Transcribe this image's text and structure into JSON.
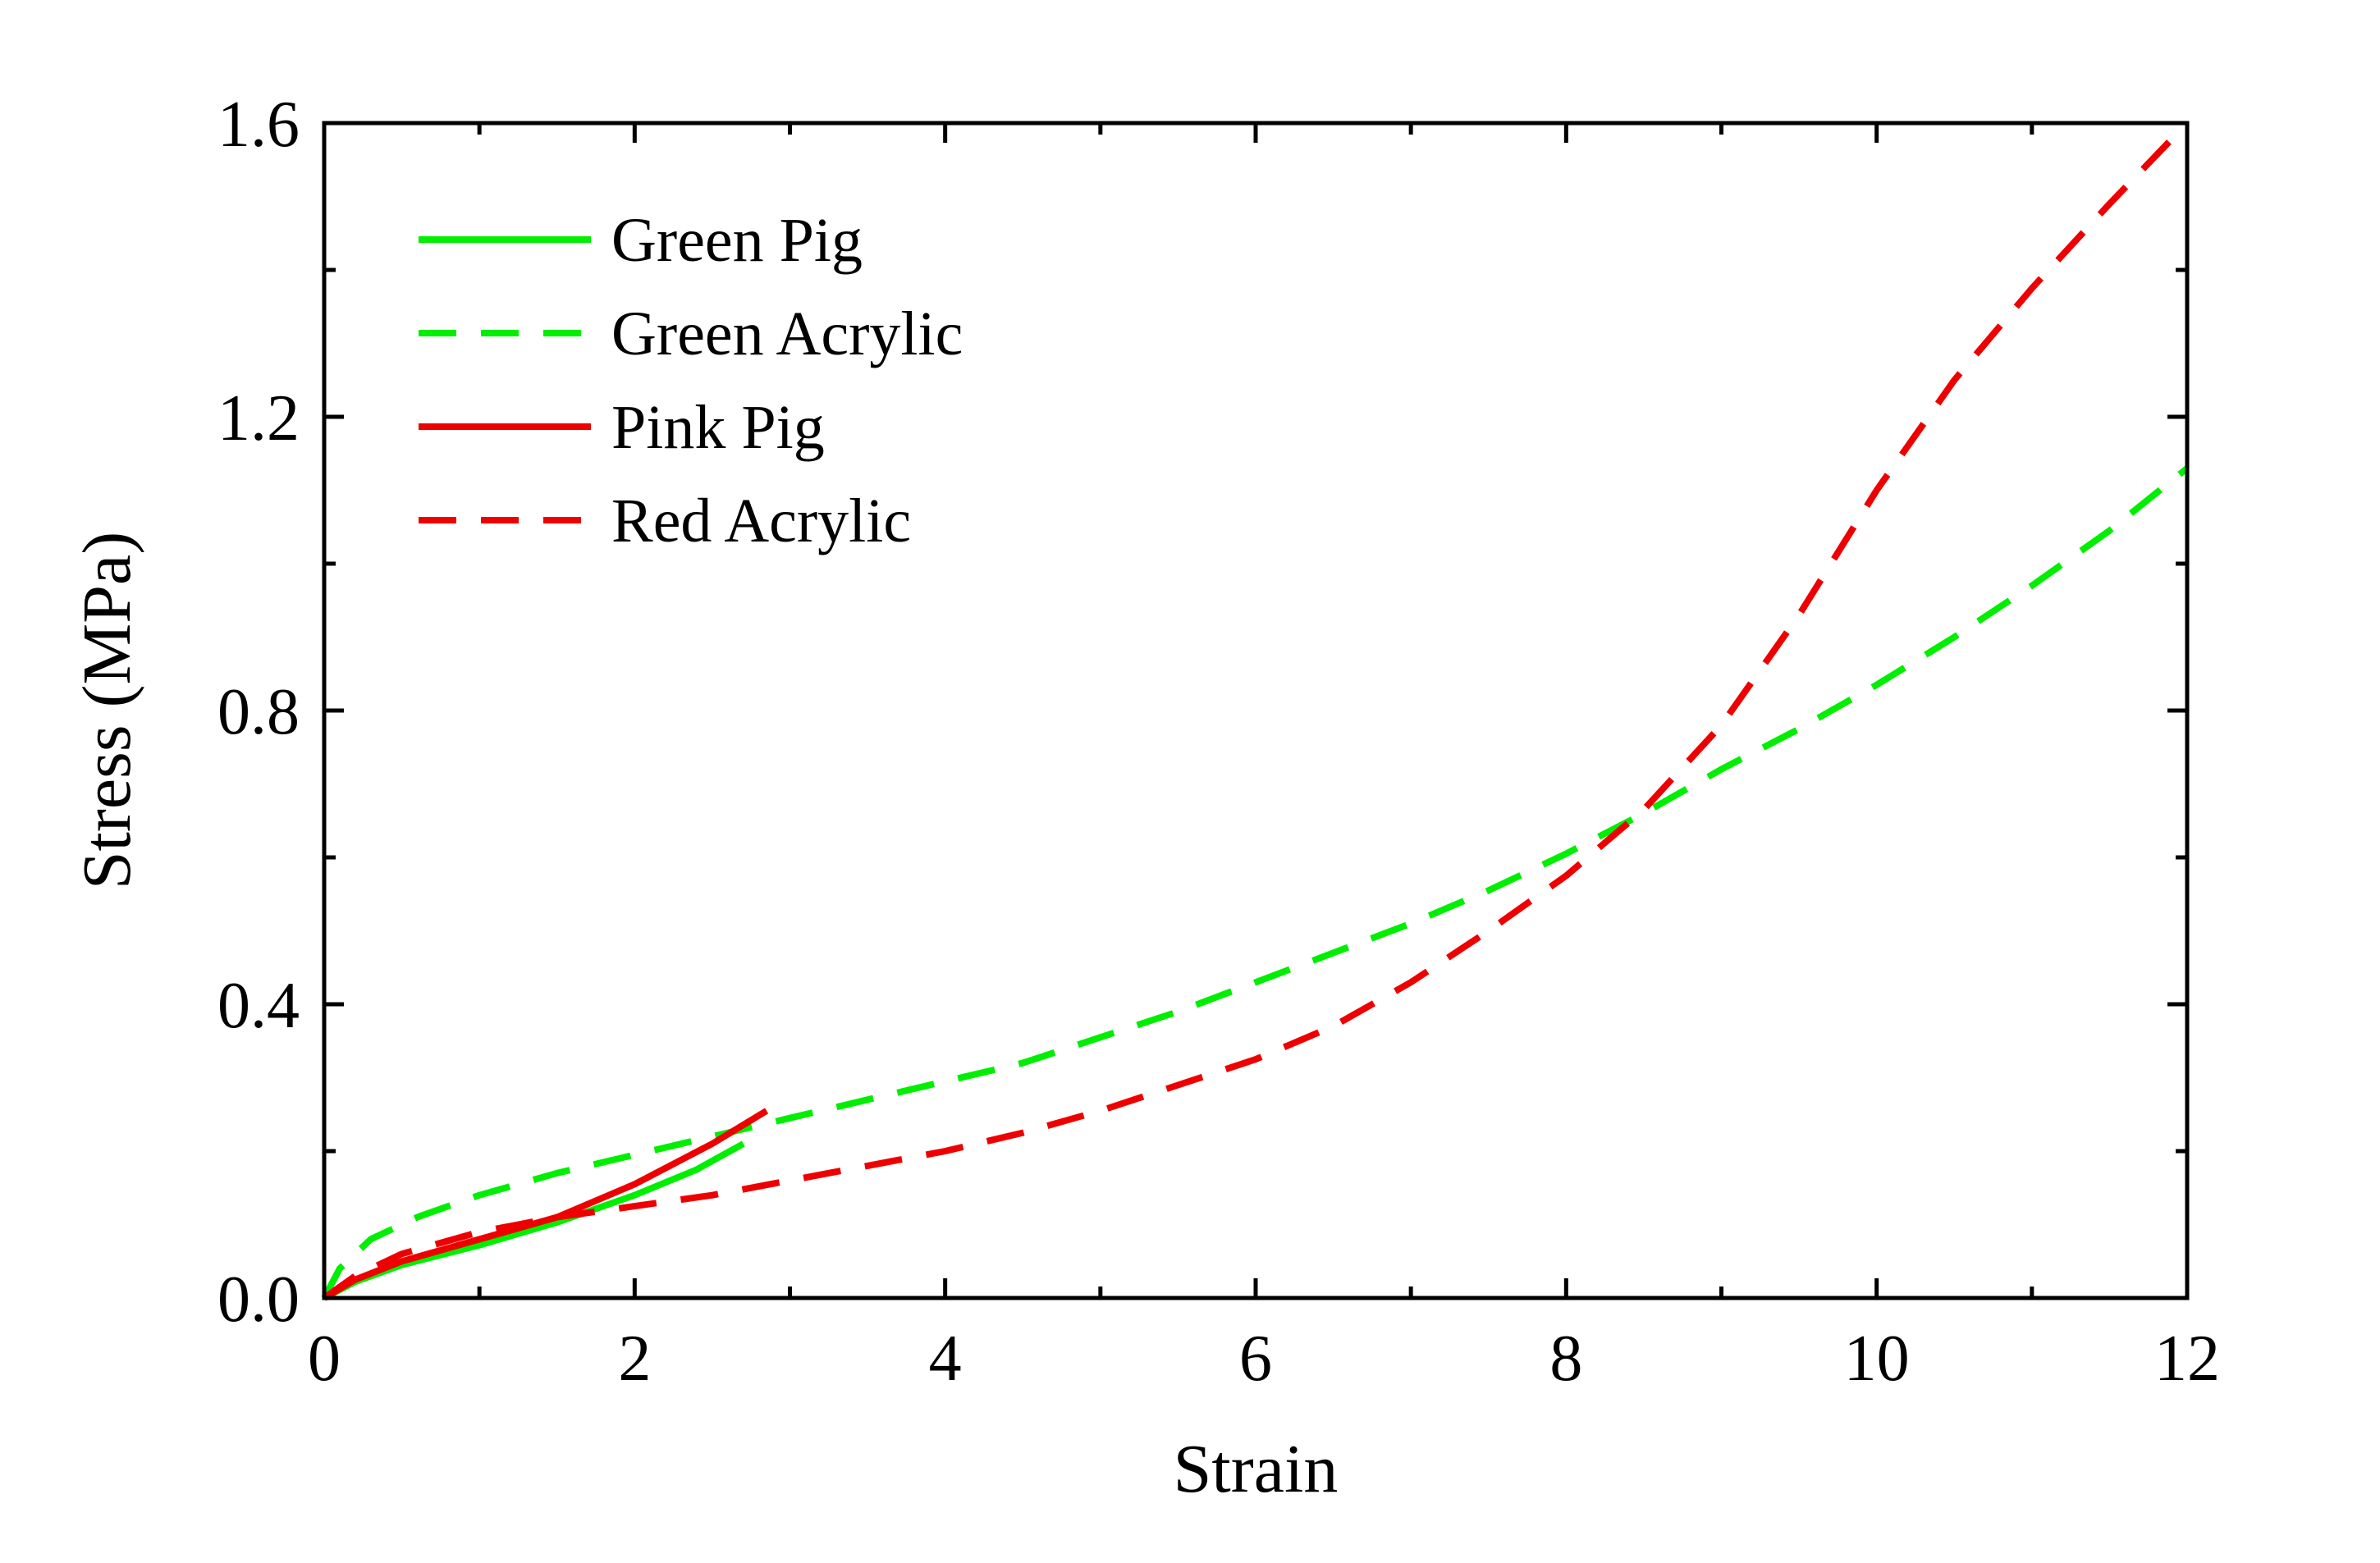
{
  "chart_data": {
    "type": "line",
    "title": "",
    "xlabel": "Strain",
    "ylabel": "Stress (MPa)",
    "xlim": [
      0,
      12
    ],
    "ylim": [
      0,
      1.6
    ],
    "xticks": [
      0,
      2,
      4,
      6,
      8,
      10,
      12
    ],
    "xtick_labels": [
      "0",
      "2",
      "4",
      "6",
      "8",
      "10",
      "12"
    ],
    "yticks": [
      0,
      0.4,
      0.8,
      1.2,
      1.6
    ],
    "ytick_labels": [
      "0.0",
      "0.4",
      "0.8",
      "1.2",
      "1.6"
    ],
    "grid": false,
    "legend_position": "top-left",
    "series": [
      {
        "name": "Green Pig",
        "color": "#00ee00",
        "style": "solid",
        "x": [
          0,
          0.2,
          0.5,
          1.0,
          1.5,
          2.0,
          2.4,
          2.7
        ],
        "y": [
          0,
          0.022,
          0.045,
          0.072,
          0.103,
          0.14,
          0.175,
          0.21
        ]
      },
      {
        "name": "Green Acrylic",
        "color": "#00ee00",
        "style": "dashed",
        "x": [
          0,
          0.1,
          0.3,
          0.6,
          1.0,
          1.5,
          2.0,
          2.5,
          3.0,
          3.5,
          4.0,
          4.5,
          5.0,
          5.5,
          6.0,
          6.5,
          7.0,
          7.5,
          8.0,
          8.5,
          9.0,
          9.5,
          10.0,
          10.5,
          11.0,
          11.5,
          12.0
        ],
        "y": [
          0,
          0.04,
          0.08,
          0.11,
          0.14,
          0.17,
          0.195,
          0.22,
          0.245,
          0.27,
          0.295,
          0.32,
          0.355,
          0.39,
          0.43,
          0.47,
          0.51,
          0.555,
          0.605,
          0.66,
          0.72,
          0.775,
          0.835,
          0.9,
          0.97,
          1.045,
          1.13
        ]
      },
      {
        "name": "Pink Pig",
        "color": "#ee0000",
        "style": "solid",
        "x": [
          0,
          0.2,
          0.5,
          1.0,
          1.5,
          2.0,
          2.5,
          2.85
        ],
        "y": [
          0,
          0.025,
          0.05,
          0.08,
          0.11,
          0.155,
          0.21,
          0.255
        ]
      },
      {
        "name": "Red Acrylic",
        "color": "#ee0000",
        "style": "dashed",
        "x": [
          0,
          0.2,
          0.5,
          1.0,
          1.5,
          2.0,
          2.5,
          3.0,
          3.5,
          4.0,
          4.5,
          5.0,
          5.5,
          6.0,
          6.5,
          7.0,
          7.5,
          8.0,
          8.5,
          9.0,
          9.5,
          10.0,
          10.5,
          11.0,
          11.5,
          12.0
        ],
        "y": [
          0,
          0.03,
          0.06,
          0.09,
          0.11,
          0.125,
          0.14,
          0.16,
          0.18,
          0.2,
          0.225,
          0.255,
          0.29,
          0.325,
          0.37,
          0.43,
          0.5,
          0.575,
          0.665,
          0.78,
          0.93,
          1.1,
          1.25,
          1.375,
          1.49,
          1.6
        ]
      }
    ]
  }
}
